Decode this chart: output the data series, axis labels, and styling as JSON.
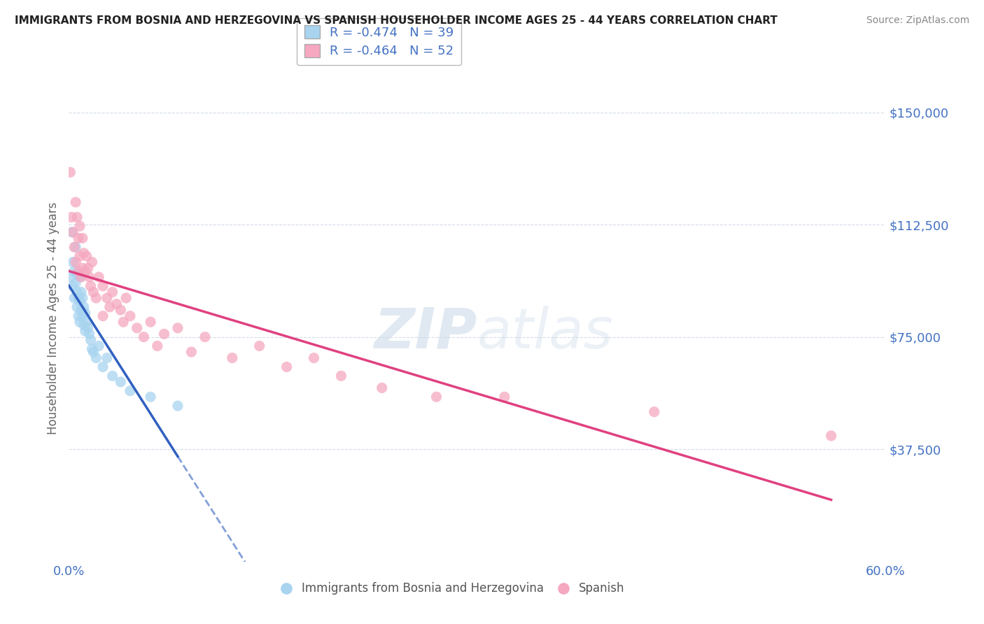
{
  "title": "IMMIGRANTS FROM BOSNIA AND HERZEGOVINA VS SPANISH HOUSEHOLDER INCOME AGES 25 - 44 YEARS CORRELATION CHART",
  "source": "Source: ZipAtlas.com",
  "ylabel": "Householder Income Ages 25 - 44 years",
  "xlim": [
    0.0,
    0.6
  ],
  "ylim": [
    0,
    162500
  ],
  "yticks": [
    37500,
    75000,
    112500,
    150000
  ],
  "ytick_labels": [
    "$37,500",
    "$75,000",
    "$112,500",
    "$150,000"
  ],
  "xticks": [
    0.0,
    0.1,
    0.2,
    0.3,
    0.4,
    0.5,
    0.6
  ],
  "xtick_labels": [
    "0.0%",
    "",
    "",
    "",
    "",
    "",
    "60.0%"
  ],
  "legend_blue_r": "R = -0.474",
  "legend_blue_n": "N = 39",
  "legend_pink_r": "R = -0.464",
  "legend_pink_n": "N = 52",
  "blue_color": "#a8d4f0",
  "pink_color": "#f5a8c0",
  "blue_line_color": "#3060c0",
  "pink_line_color": "#e04080",
  "axis_color": "#4472c4",
  "title_color": "#222222",
  "blue_scatter_x": [
    0.001,
    0.002,
    0.003,
    0.003,
    0.004,
    0.004,
    0.005,
    0.005,
    0.006,
    0.006,
    0.006,
    0.007,
    0.007,
    0.008,
    0.008,
    0.008,
    0.009,
    0.009,
    0.01,
    0.01,
    0.011,
    0.011,
    0.012,
    0.012,
    0.013,
    0.014,
    0.015,
    0.016,
    0.017,
    0.018,
    0.02,
    0.022,
    0.025,
    0.028,
    0.032,
    0.038,
    0.045,
    0.06,
    0.08
  ],
  "blue_scatter_y": [
    95000,
    110000,
    100000,
    92000,
    97000,
    88000,
    105000,
    93000,
    96000,
    85000,
    90000,
    88000,
    82000,
    95000,
    87000,
    80000,
    90000,
    84000,
    88000,
    82000,
    85000,
    79000,
    83000,
    77000,
    80000,
    78000,
    76000,
    74000,
    71000,
    70000,
    68000,
    72000,
    65000,
    68000,
    62000,
    60000,
    57000,
    55000,
    52000
  ],
  "pink_scatter_x": [
    0.001,
    0.002,
    0.003,
    0.004,
    0.005,
    0.005,
    0.006,
    0.007,
    0.007,
    0.008,
    0.008,
    0.009,
    0.01,
    0.01,
    0.011,
    0.012,
    0.013,
    0.014,
    0.015,
    0.016,
    0.017,
    0.018,
    0.02,
    0.022,
    0.025,
    0.025,
    0.028,
    0.03,
    0.032,
    0.035,
    0.038,
    0.04,
    0.042,
    0.045,
    0.05,
    0.055,
    0.06,
    0.065,
    0.07,
    0.08,
    0.09,
    0.1,
    0.12,
    0.14,
    0.16,
    0.18,
    0.2,
    0.23,
    0.27,
    0.32,
    0.43,
    0.56
  ],
  "pink_scatter_y": [
    130000,
    115000,
    110000,
    105000,
    120000,
    100000,
    115000,
    108000,
    97000,
    112000,
    102000,
    95000,
    108000,
    98000,
    103000,
    97000,
    102000,
    98000,
    95000,
    92000,
    100000,
    90000,
    88000,
    95000,
    92000,
    82000,
    88000,
    85000,
    90000,
    86000,
    84000,
    80000,
    88000,
    82000,
    78000,
    75000,
    80000,
    72000,
    76000,
    78000,
    70000,
    75000,
    68000,
    72000,
    65000,
    68000,
    62000,
    58000,
    55000,
    55000,
    50000,
    42000
  ],
  "grid_color": "#d0d8e8"
}
